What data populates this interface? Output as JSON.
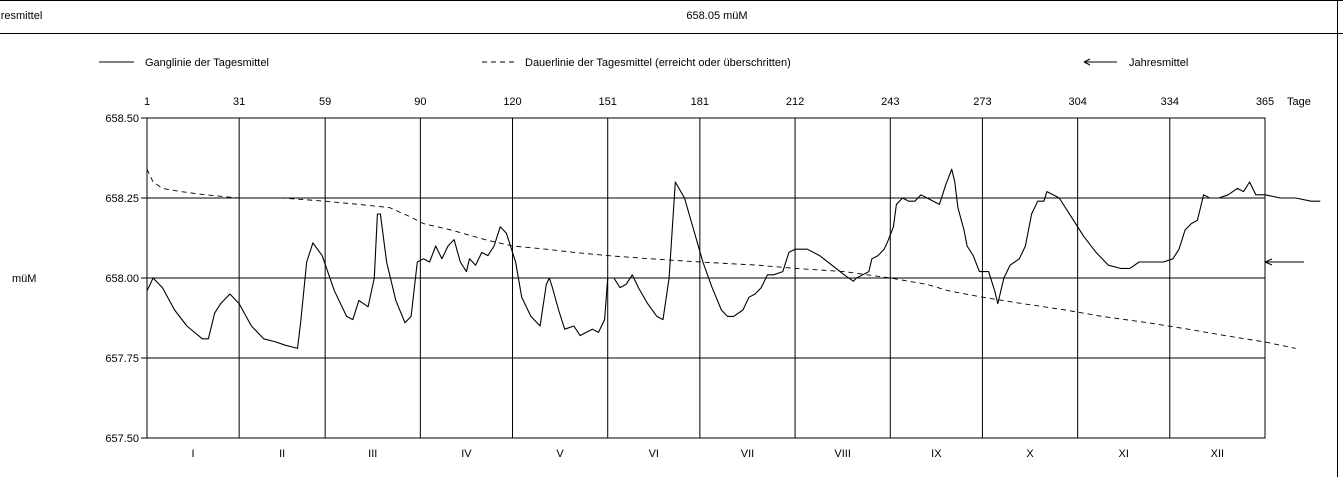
{
  "header": {
    "left_label": "Jahresmittel",
    "annual_mean_value": "658.05 müM"
  },
  "legend": {
    "solid": "Ganglinie der Tagesmittel",
    "dashed": "Dauerlinie der Tagesmittel (erreicht oder überschritten)",
    "arrow": "Jahresmittel"
  },
  "chart_data": {
    "type": "line",
    "ylabel": "müM",
    "xlabel_top": "Tage",
    "ylim": [
      657.5,
      658.5
    ],
    "yticks": [
      "658.50",
      "658.25",
      "658.00",
      "657.75",
      "657.50"
    ],
    "ytick_values": [
      658.5,
      658.25,
      658.0,
      657.75,
      657.5
    ],
    "xlim": [
      1,
      365
    ],
    "day_ticks": [
      1,
      31,
      59,
      90,
      120,
      151,
      181,
      212,
      243,
      273,
      304,
      334,
      365
    ],
    "months": [
      "I",
      "II",
      "III",
      "IV",
      "V",
      "VI",
      "VII",
      "VIII",
      "IX",
      "X",
      "XI",
      "XII"
    ],
    "month_starts": [
      1,
      31,
      59,
      90,
      120,
      151,
      181,
      212,
      243,
      273,
      304,
      334,
      365
    ],
    "annual_mean": 658.05,
    "grid": true,
    "legend_position": "top",
    "series": [
      {
        "name": "Ganglinie der Tagesmittel",
        "style": "solid",
        "points": [
          [
            1,
            657.96
          ],
          [
            3,
            658.0
          ],
          [
            6,
            657.97
          ],
          [
            10,
            657.9
          ],
          [
            14,
            657.85
          ],
          [
            19,
            657.81
          ],
          [
            21,
            657.81
          ],
          [
            23,
            657.89
          ],
          [
            25,
            657.92
          ],
          [
            28,
            657.95
          ],
          [
            31,
            657.92
          ],
          [
            35,
            657.85
          ],
          [
            39,
            657.81
          ],
          [
            43,
            657.8
          ],
          [
            46,
            657.79
          ],
          [
            50,
            657.78
          ],
          [
            51,
            657.86
          ],
          [
            53,
            658.05
          ],
          [
            55,
            658.11
          ],
          [
            58,
            658.07
          ],
          [
            62,
            657.96
          ],
          [
            66,
            657.88
          ],
          [
            68,
            657.87
          ],
          [
            70,
            657.93
          ],
          [
            73,
            657.91
          ],
          [
            75,
            658.0
          ],
          [
            76,
            658.2
          ],
          [
            77,
            658.2
          ],
          [
            79,
            658.05
          ],
          [
            82,
            657.93
          ],
          [
            85,
            657.86
          ],
          [
            87,
            657.88
          ],
          [
            89,
            658.05
          ],
          [
            91,
            658.06
          ],
          [
            93,
            658.05
          ],
          [
            95,
            658.1
          ],
          [
            97,
            658.06
          ],
          [
            99,
            658.1
          ],
          [
            101,
            658.12
          ],
          [
            103,
            658.05
          ],
          [
            105,
            658.02
          ],
          [
            106,
            658.06
          ],
          [
            108,
            658.04
          ],
          [
            110,
            658.08
          ],
          [
            112,
            658.07
          ],
          [
            114,
            658.1
          ],
          [
            116,
            658.16
          ],
          [
            118,
            658.14
          ],
          [
            121,
            658.05
          ],
          [
            123,
            657.94
          ],
          [
            126,
            657.88
          ],
          [
            129,
            657.85
          ],
          [
            131,
            657.98
          ],
          [
            132,
            658.0
          ],
          [
            133,
            657.97
          ],
          [
            135,
            657.9
          ],
          [
            137,
            657.84
          ],
          [
            140,
            657.85
          ],
          [
            142,
            657.82
          ],
          [
            144,
            657.83
          ],
          [
            146,
            657.84
          ],
          [
            148,
            657.83
          ],
          [
            150,
            657.87
          ],
          [
            151,
            658.0
          ],
          [
            153,
            658.0
          ],
          [
            155,
            657.97
          ],
          [
            157,
            657.98
          ],
          [
            159,
            658.01
          ],
          [
            161,
            657.97
          ],
          [
            164,
            657.92
          ],
          [
            167,
            657.88
          ],
          [
            169,
            657.87
          ],
          [
            171,
            658.0
          ],
          [
            173,
            658.3
          ],
          [
            176,
            658.25
          ],
          [
            179,
            658.15
          ],
          [
            182,
            658.05
          ],
          [
            185,
            657.97
          ],
          [
            188,
            657.9
          ],
          [
            190,
            657.88
          ],
          [
            192,
            657.88
          ],
          [
            195,
            657.9
          ],
          [
            197,
            657.94
          ],
          [
            199,
            657.95
          ],
          [
            201,
            657.97
          ],
          [
            203,
            658.01
          ],
          [
            205,
            658.01
          ],
          [
            208,
            658.02
          ],
          [
            210,
            658.08
          ],
          [
            212,
            658.09
          ],
          [
            216,
            658.09
          ],
          [
            220,
            658.07
          ],
          [
            224,
            658.04
          ],
          [
            228,
            658.01
          ],
          [
            231,
            657.99
          ],
          [
            232,
            658.0
          ],
          [
            234,
            658.01
          ],
          [
            236,
            658.02
          ],
          [
            237,
            658.06
          ],
          [
            239,
            658.07
          ],
          [
            241,
            658.09
          ],
          [
            242,
            658.11
          ],
          [
            244,
            658.16
          ],
          [
            245,
            658.23
          ],
          [
            247,
            658.25
          ],
          [
            249,
            658.24
          ],
          [
            251,
            658.24
          ],
          [
            253,
            658.26
          ],
          [
            255,
            658.25
          ],
          [
            257,
            658.24
          ],
          [
            259,
            658.23
          ],
          [
            261,
            658.29
          ],
          [
            263,
            658.34
          ],
          [
            264,
            658.3
          ],
          [
            265,
            658.22
          ],
          [
            267,
            658.15
          ],
          [
            268,
            658.1
          ],
          [
            270,
            658.07
          ],
          [
            272,
            658.02
          ],
          [
            275,
            658.02
          ],
          [
            277,
            657.96
          ],
          [
            278,
            657.92
          ],
          [
            280,
            658.0
          ],
          [
            282,
            658.04
          ],
          [
            285,
            658.06
          ],
          [
            287,
            658.1
          ],
          [
            289,
            658.2
          ],
          [
            291,
            658.24
          ],
          [
            293,
            658.24
          ],
          [
            294,
            658.27
          ],
          [
            296,
            658.26
          ],
          [
            298,
            658.25
          ],
          [
            302,
            658.19
          ],
          [
            306,
            658.13
          ],
          [
            310,
            658.08
          ],
          [
            314,
            658.04
          ],
          [
            318,
            658.03
          ],
          [
            321,
            658.03
          ],
          [
            324,
            658.05
          ],
          [
            328,
            658.05
          ],
          [
            332,
            658.05
          ],
          [
            335,
            658.06
          ],
          [
            337,
            658.09
          ],
          [
            339,
            658.15
          ],
          [
            341,
            658.17
          ],
          [
            343,
            658.18
          ],
          [
            345,
            658.26
          ],
          [
            347,
            658.25
          ],
          [
            350,
            658.25
          ],
          [
            353,
            658.26
          ],
          [
            356,
            658.28
          ],
          [
            358,
            658.27
          ],
          [
            360,
            658.3
          ],
          [
            362,
            658.26
          ],
          [
            365,
            658.26
          ],
          [
            370,
            658.25
          ],
          [
            375,
            658.25
          ],
          [
            380,
            658.24
          ],
          [
            383,
            658.24
          ]
        ]
      },
      {
        "name": "Dauerlinie der Tagesmittel (erreicht oder überschritten)",
        "style": "dashed",
        "points": [
          [
            1,
            658.34
          ],
          [
            3,
            658.3
          ],
          [
            6,
            658.28
          ],
          [
            12,
            658.27
          ],
          [
            20,
            658.26
          ],
          [
            31,
            658.25
          ],
          [
            45,
            658.25
          ],
          [
            59,
            658.24
          ],
          [
            70,
            658.23
          ],
          [
            80,
            658.22
          ],
          [
            87,
            658.19
          ],
          [
            91,
            658.17
          ],
          [
            100,
            658.15
          ],
          [
            111,
            658.12
          ],
          [
            120,
            658.1
          ],
          [
            131,
            658.09
          ],
          [
            140,
            658.08
          ],
          [
            151,
            658.07
          ],
          [
            165,
            658.06
          ],
          [
            181,
            658.05
          ],
          [
            200,
            658.04
          ],
          [
            212,
            658.03
          ],
          [
            228,
            658.02
          ],
          [
            243,
            658.0
          ],
          [
            255,
            657.98
          ],
          [
            262,
            657.96
          ],
          [
            273,
            657.94
          ],
          [
            286,
            657.92
          ],
          [
            300,
            657.9
          ],
          [
            312,
            657.88
          ],
          [
            327,
            657.86
          ],
          [
            340,
            657.84
          ],
          [
            352,
            657.82
          ],
          [
            365,
            657.8
          ],
          [
            375,
            657.78
          ]
        ]
      }
    ]
  }
}
